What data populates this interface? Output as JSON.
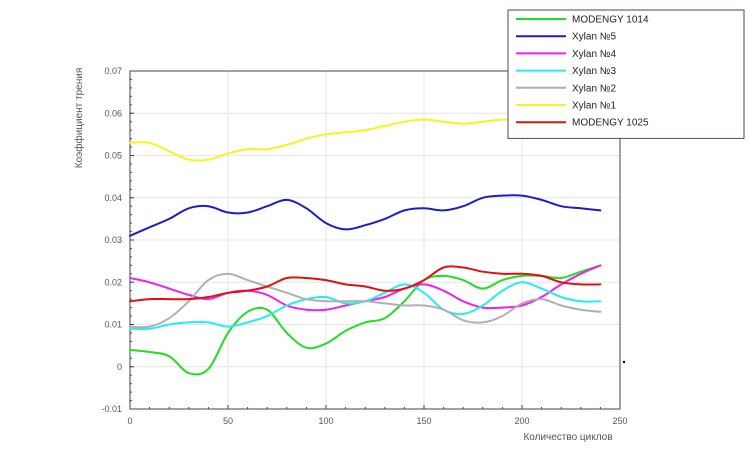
{
  "chart_data": {
    "type": "line",
    "xlabel": "Количество циклов",
    "ylabel": "Коэффициент трения",
    "xlim": [
      0,
      250
    ],
    "ylim": [
      -0.01,
      0.07
    ],
    "xticks": [
      "0",
      "50",
      "100",
      "150",
      "200",
      "250"
    ],
    "yticks": [
      "-0.01",
      "0",
      "0.01",
      "0.02",
      "0.03",
      "0.04",
      "0.05",
      "0.06",
      "0.07"
    ],
    "grid": true,
    "legend_position": "top-right",
    "x": [
      0,
      10,
      20,
      30,
      40,
      50,
      60,
      70,
      80,
      90,
      100,
      110,
      120,
      130,
      140,
      150,
      160,
      170,
      180,
      190,
      200,
      210,
      220,
      230,
      240
    ],
    "series": [
      {
        "name": "MODENGY 1014",
        "color": "#22dd22",
        "values": [
          0.004,
          0.0035,
          0.0025,
          -0.0015,
          -0.0005,
          0.008,
          0.013,
          0.0135,
          0.008,
          0.0045,
          0.0055,
          0.0085,
          0.0105,
          0.0115,
          0.0155,
          0.0205,
          0.0215,
          0.0205,
          0.0185,
          0.0205,
          0.0215,
          0.0215,
          0.021,
          0.0225,
          0.024
        ]
      },
      {
        "name": "Xylan №5",
        "color": "#1c1cc8",
        "values": [
          0.031,
          0.033,
          0.035,
          0.0375,
          0.038,
          0.0365,
          0.0365,
          0.038,
          0.0395,
          0.0375,
          0.034,
          0.0325,
          0.0335,
          0.035,
          0.037,
          0.0375,
          0.037,
          0.038,
          0.04,
          0.0405,
          0.0405,
          0.0395,
          0.038,
          0.0375,
          0.037
        ]
      },
      {
        "name": "Xylan №4",
        "color": "#ee22ee",
        "values": [
          0.021,
          0.02,
          0.0185,
          0.017,
          0.016,
          0.0175,
          0.018,
          0.017,
          0.0145,
          0.0135,
          0.0135,
          0.0145,
          0.0155,
          0.0165,
          0.0185,
          0.0195,
          0.018,
          0.0155,
          0.014,
          0.014,
          0.0145,
          0.0165,
          0.0195,
          0.022,
          0.024
        ]
      },
      {
        "name": "Xylan №3",
        "color": "#22eeee",
        "values": [
          0.009,
          0.009,
          0.01,
          0.0105,
          0.0105,
          0.0095,
          0.0105,
          0.012,
          0.0145,
          0.016,
          0.0165,
          0.015,
          0.0155,
          0.0175,
          0.0195,
          0.0175,
          0.0135,
          0.0125,
          0.0145,
          0.018,
          0.02,
          0.0185,
          0.0165,
          0.0155,
          0.0155
        ]
      },
      {
        "name": "Xylan №2",
        "color": "#b0b0b0",
        "values": [
          0.0095,
          0.0095,
          0.0115,
          0.0155,
          0.0205,
          0.022,
          0.0205,
          0.019,
          0.0175,
          0.016,
          0.0155,
          0.0155,
          0.0155,
          0.015,
          0.0145,
          0.0145,
          0.0135,
          0.011,
          0.0105,
          0.012,
          0.015,
          0.016,
          0.0145,
          0.0135,
          0.013
        ]
      },
      {
        "name": "Xylan №1",
        "color": "#f5f520",
        "values": [
          0.053,
          0.053,
          0.051,
          0.049,
          0.049,
          0.0505,
          0.0515,
          0.0515,
          0.0525,
          0.054,
          0.055,
          0.0555,
          0.056,
          0.057,
          0.058,
          0.0585,
          0.058,
          0.0575,
          0.058,
          0.0585,
          0.0585,
          0.0585,
          0.058,
          0.058,
          0.058
        ]
      },
      {
        "name": "MODENGY 1025",
        "color": "#dd1111",
        "values": [
          0.0155,
          0.016,
          0.016,
          0.016,
          0.0165,
          0.0175,
          0.018,
          0.019,
          0.021,
          0.021,
          0.0205,
          0.0195,
          0.019,
          0.018,
          0.0185,
          0.0205,
          0.0235,
          0.0235,
          0.0225,
          0.022,
          0.022,
          0.0215,
          0.02,
          0.0195,
          0.0195
        ]
      }
    ]
  }
}
